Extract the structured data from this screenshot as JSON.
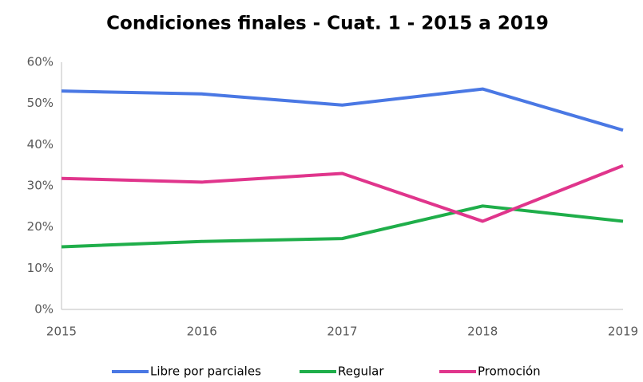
{
  "chart_data": {
    "type": "line",
    "title": "Condiciones finales - Cuat. 1  - 2015 a 2019",
    "categories": [
      "2015",
      "2016",
      "2017",
      "2018",
      "2019"
    ],
    "series": [
      {
        "name": "Libre por parciales",
        "color": "#4a78e4",
        "values": [
          53,
          52.3,
          49.6,
          53.5,
          43.5
        ]
      },
      {
        "name": "Regular",
        "color": "#1fae4a",
        "values": [
          15.2,
          16.5,
          17.2,
          25.1,
          21.4
        ]
      },
      {
        "name": "Promoción",
        "color": "#e0358c",
        "values": [
          31.8,
          30.9,
          33,
          21.4,
          34.9
        ]
      }
    ],
    "ylim": [
      0,
      60
    ],
    "yticks": [
      {
        "value": 0,
        "label": "0%"
      },
      {
        "value": 10,
        "label": "10%"
      },
      {
        "value": 20,
        "label": "20%"
      },
      {
        "value": 30,
        "label": "30%"
      },
      {
        "value": 40,
        "label": "40%"
      },
      {
        "value": 50,
        "label": "50%"
      },
      {
        "value": 60,
        "label": "60%"
      }
    ],
    "grid": false,
    "legend": "bottom"
  }
}
